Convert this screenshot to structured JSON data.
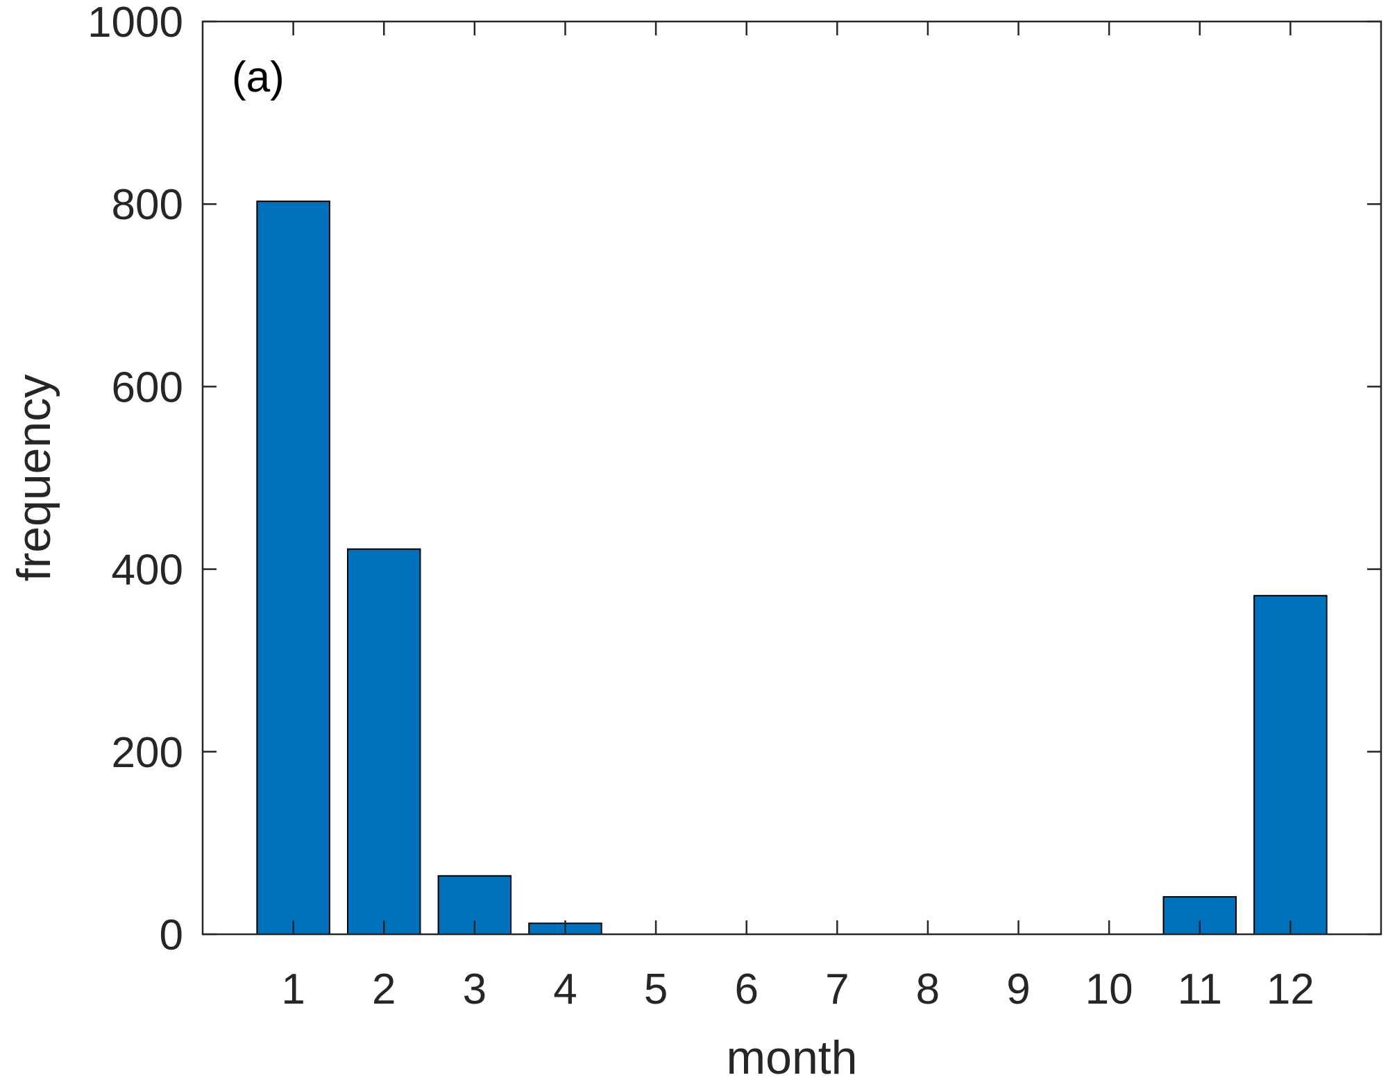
{
  "chart_data": {
    "type": "bar",
    "panel_label": "(a)",
    "xlabel": "month",
    "ylabel": "frequency",
    "categories": [
      "1",
      "2",
      "3",
      "4",
      "5",
      "6",
      "7",
      "8",
      "9",
      "10",
      "11",
      "12"
    ],
    "values": [
      803,
      422,
      64,
      12,
      0,
      0,
      0,
      0,
      0,
      0,
      41,
      371
    ],
    "ylim": [
      0,
      1000
    ],
    "xlim": [
      0,
      13
    ],
    "yticks": [
      0,
      200,
      400,
      600,
      800,
      1000
    ],
    "ytick_labels": [
      "0",
      "200",
      "400",
      "600",
      "800",
      "1000"
    ],
    "grid": false,
    "legend": "none",
    "colors": {
      "bar_fill": "#0072BD",
      "bar_edge": "#000000",
      "axes": "#262626",
      "text": "#262626"
    }
  }
}
